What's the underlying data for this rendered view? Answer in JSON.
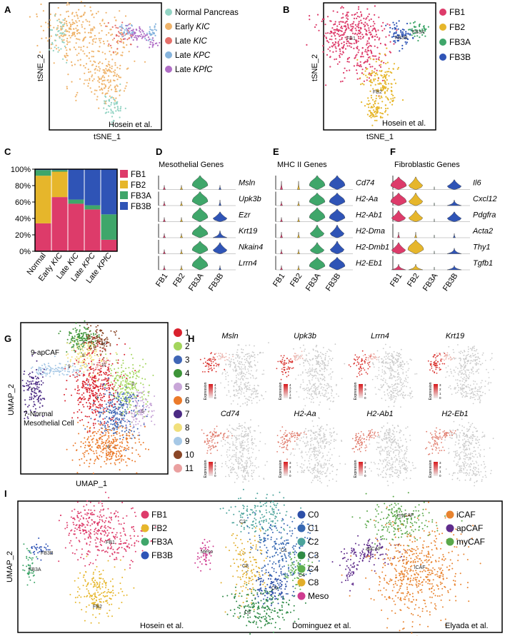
{
  "panel_letters": {
    "A": "A",
    "B": "B",
    "C": "C",
    "D": "D",
    "E": "E",
    "F": "F",
    "G": "G",
    "H": "H",
    "I": "I"
  },
  "colors": {
    "normal_pancreas": "#93d4c4",
    "early_kic": "#efb36a",
    "late_kic": "#e5706a",
    "late_kpc": "#86b4dd",
    "late_kpfc": "#b06ec6",
    "fb1": "#dd3b6a",
    "fb2": "#e6b62b",
    "fb3a": "#3fa66a",
    "fb3b": "#2f54b6",
    "c0": "#2d4fa8",
    "c1": "#3768b2",
    "c2": "#4ba39b",
    "c3": "#2e8a45",
    "c4": "#5eb04f",
    "c8": "#e1ad2a",
    "meso": "#cf3b90",
    "icaf": "#e8832f",
    "apcaf": "#5f2c8c",
    "mycaf": "#5aa84a",
    "uc1": "#d9212d",
    "uc2": "#a3d55c",
    "uc3": "#3f66b6",
    "uc4": "#3d9438",
    "uc5": "#c8a6d8",
    "uc6": "#eb7a2a",
    "uc7": "#4b2a84",
    "uc8": "#f1e07c",
    "uc9": "#a6c8e6",
    "uc10": "#8a4626",
    "uc11": "#eaa0a0"
  },
  "panel_a": {
    "legend": [
      "Normal Pancreas",
      "Early",
      "Late",
      "Late",
      "Late"
    ],
    "legend_genotype": [
      "",
      "KIC",
      "KIC",
      "KPC",
      "KPfC"
    ],
    "source": "Hosein et al.",
    "xlabel": "tSNE_1",
    "ylabel": "tSNE_2"
  },
  "panel_b": {
    "legend": [
      "FB1",
      "FB2",
      "FB3A",
      "FB3B"
    ],
    "cluster_labels": [
      "FB1",
      "FB2",
      "FB3B",
      "FB3A"
    ],
    "source": "Hosein et al.",
    "xlabel": "tSNE_1",
    "ylabel": "tSNE_2"
  },
  "chart_data": {
    "type": "bar",
    "stacked": true,
    "categories": [
      "Normal",
      "Early KIC",
      "Late KIC",
      "Late KPC",
      "Late KPfC"
    ],
    "yticks": [
      "0%",
      "20%",
      "40%",
      "60%",
      "80%",
      "100%"
    ],
    "ylim": [
      0,
      100
    ],
    "legend_position": "right",
    "series": [
      {
        "name": "FB1",
        "values": [
          34,
          66,
          58,
          51,
          14
        ]
      },
      {
        "name": "FB2",
        "values": [
          58,
          31,
          0,
          0,
          0
        ]
      },
      {
        "name": "FB3A",
        "values": [
          7,
          2,
          5,
          5,
          31
        ]
      },
      {
        "name": "FB3B",
        "values": [
          1,
          1,
          37,
          44,
          55
        ]
      }
    ]
  },
  "panel_d": {
    "title": "Mesothelial Genes",
    "genes": [
      "Msln",
      "Upk3b",
      "Ezr",
      "Krt19",
      "Nkain4",
      "Lrrn4"
    ]
  },
  "panel_e": {
    "title": "MHC II Genes",
    "genes": [
      "Cd74",
      "H2-Aa",
      "H2-Ab1",
      "H2-Dma",
      "H2-Dmb1",
      "H2-Eb1"
    ]
  },
  "panel_f": {
    "title": "Fibroblastic Genes",
    "genes": [
      "Il6",
      "Cxcl12",
      "Pdgfra",
      "Acta2",
      "Thy1",
      "Tgfb1"
    ]
  },
  "violin_groups": [
    "FB1",
    "FB2",
    "FB3A",
    "FB3B"
  ],
  "panel_g": {
    "legend": [
      "1",
      "2",
      "3",
      "4",
      "5",
      "6",
      "7",
      "8",
      "9",
      "10",
      "11"
    ],
    "cluster_labels": [
      "1",
      "2",
      "3",
      "4",
      "5",
      "6",
      "7",
      "8",
      "9",
      "10",
      "11"
    ],
    "annot_apcaf": "9-apCAF",
    "annot_meso_1": "7-Normal",
    "annot_meso_2": "Mesothelial Cell",
    "xlabel": "UMAP_1",
    "ylabel": "UMAP_2"
  },
  "panel_h": {
    "genes": [
      "Msln",
      "Upk3b",
      "Lrrn4",
      "Krt19",
      "Cd74",
      "H2-Aa",
      "H2-Ab1",
      "H2-Eb1"
    ],
    "colorbar_label": "Expression",
    "colorbar_ticks": [
      [
        "4",
        "3",
        "2",
        "1",
        "0"
      ],
      [
        "4",
        "3",
        "2",
        "1",
        "0"
      ],
      [
        "3",
        "2",
        "1",
        "0"
      ],
      [
        "3",
        "2",
        "1",
        "0"
      ],
      [
        "4",
        "3",
        "2",
        "1",
        "0"
      ],
      [
        "3",
        "2",
        "1",
        "0"
      ],
      [
        "3",
        "2",
        "1",
        "0"
      ],
      [
        "3",
        "2",
        "1",
        "0"
      ]
    ]
  },
  "panel_i": {
    "ylabel": "UMAP_2",
    "hosein": {
      "legend": [
        "FB1",
        "FB2",
        "FB3A",
        "FB3B"
      ],
      "cluster_labels": [
        "FB3B",
        "FB3A",
        "FB1",
        "FB2"
      ],
      "source": "Hosein et al."
    },
    "dominguez": {
      "legend": [
        "C0",
        "C1",
        "C2",
        "C3",
        "C4",
        "C8",
        "Meso"
      ],
      "cluster_labels": [
        "C2",
        "Meso",
        "C1",
        "C8",
        "C4",
        "C0",
        "C3"
      ],
      "source": "Dominguez et al."
    },
    "elyada": {
      "legend": [
        "iCAF",
        "apCAF",
        "myCAF"
      ],
      "cluster_labels": [
        "myCAF",
        "apCAF",
        "iCAF"
      ],
      "source": "Elyada et al."
    }
  }
}
